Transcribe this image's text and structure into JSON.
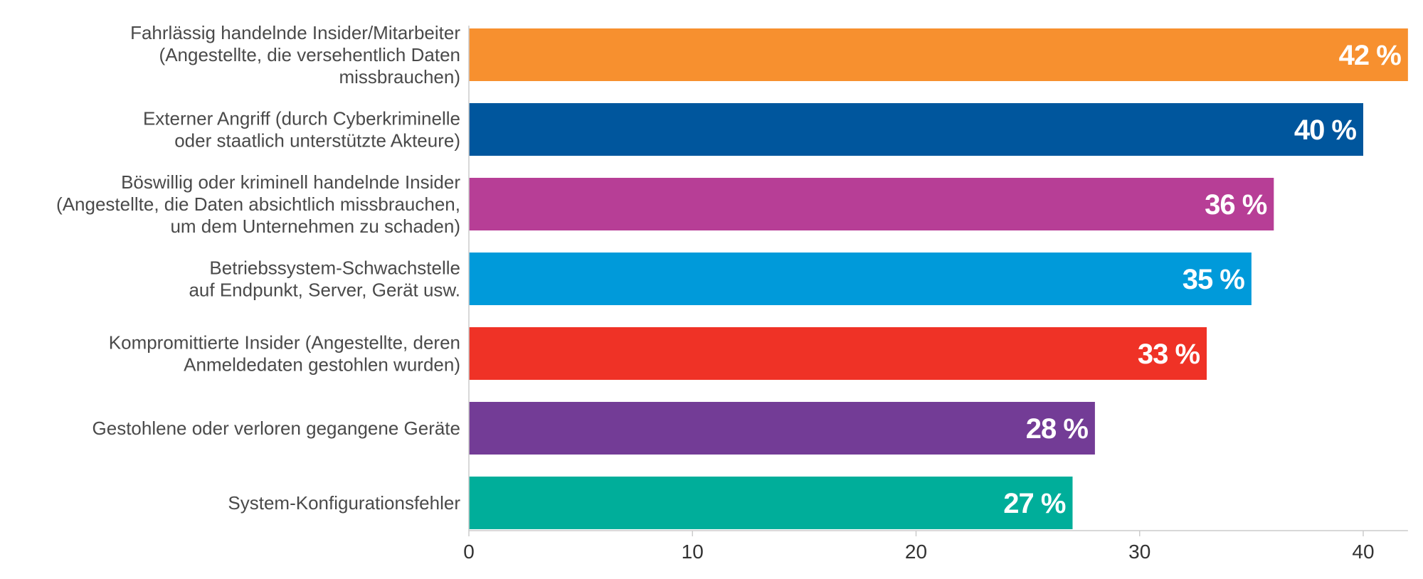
{
  "chart_data": {
    "type": "bar",
    "orientation": "horizontal",
    "title": "",
    "xlabel": "",
    "ylabel": "",
    "xlim": [
      0,
      42
    ],
    "x_ticks": [
      0,
      10,
      20,
      30,
      40
    ],
    "grid": false,
    "categories": [
      [
        "Fahrlässig handelnde Insider/Mitarbeiter",
        "(Angestellte, die versehentlich Daten",
        "missbrauchen)"
      ],
      [
        "Externer Angriff (durch Cyberkriminelle",
        "oder staatlich unterstützte Akteure)"
      ],
      [
        "Böswillig oder kriminell handelnde Insider",
        "(Angestellte, die Daten absichtlich missbrauchen,",
        "um dem Unternehmen zu schaden)"
      ],
      [
        "Betriebssystem-Schwachstelle",
        "auf Endpunkt, Server, Gerät usw."
      ],
      [
        "Kompromittierte Insider (Angestellte, deren",
        "Anmeldedaten gestohlen wurden)"
      ],
      [
        "Gestohlene oder verloren gegangene Geräte"
      ],
      [
        "System-Konfigurationsfehler"
      ]
    ],
    "values": [
      42,
      40,
      36,
      35,
      33,
      28,
      27
    ],
    "value_labels": [
      "42 %",
      "40 %",
      "36 %",
      "35 %",
      "33 %",
      "28 %",
      "27 %"
    ],
    "colors": [
      "#F7902F",
      "#00569D",
      "#B73E96",
      "#009ADA",
      "#EF3226",
      "#733C96",
      "#00AE9A"
    ]
  }
}
